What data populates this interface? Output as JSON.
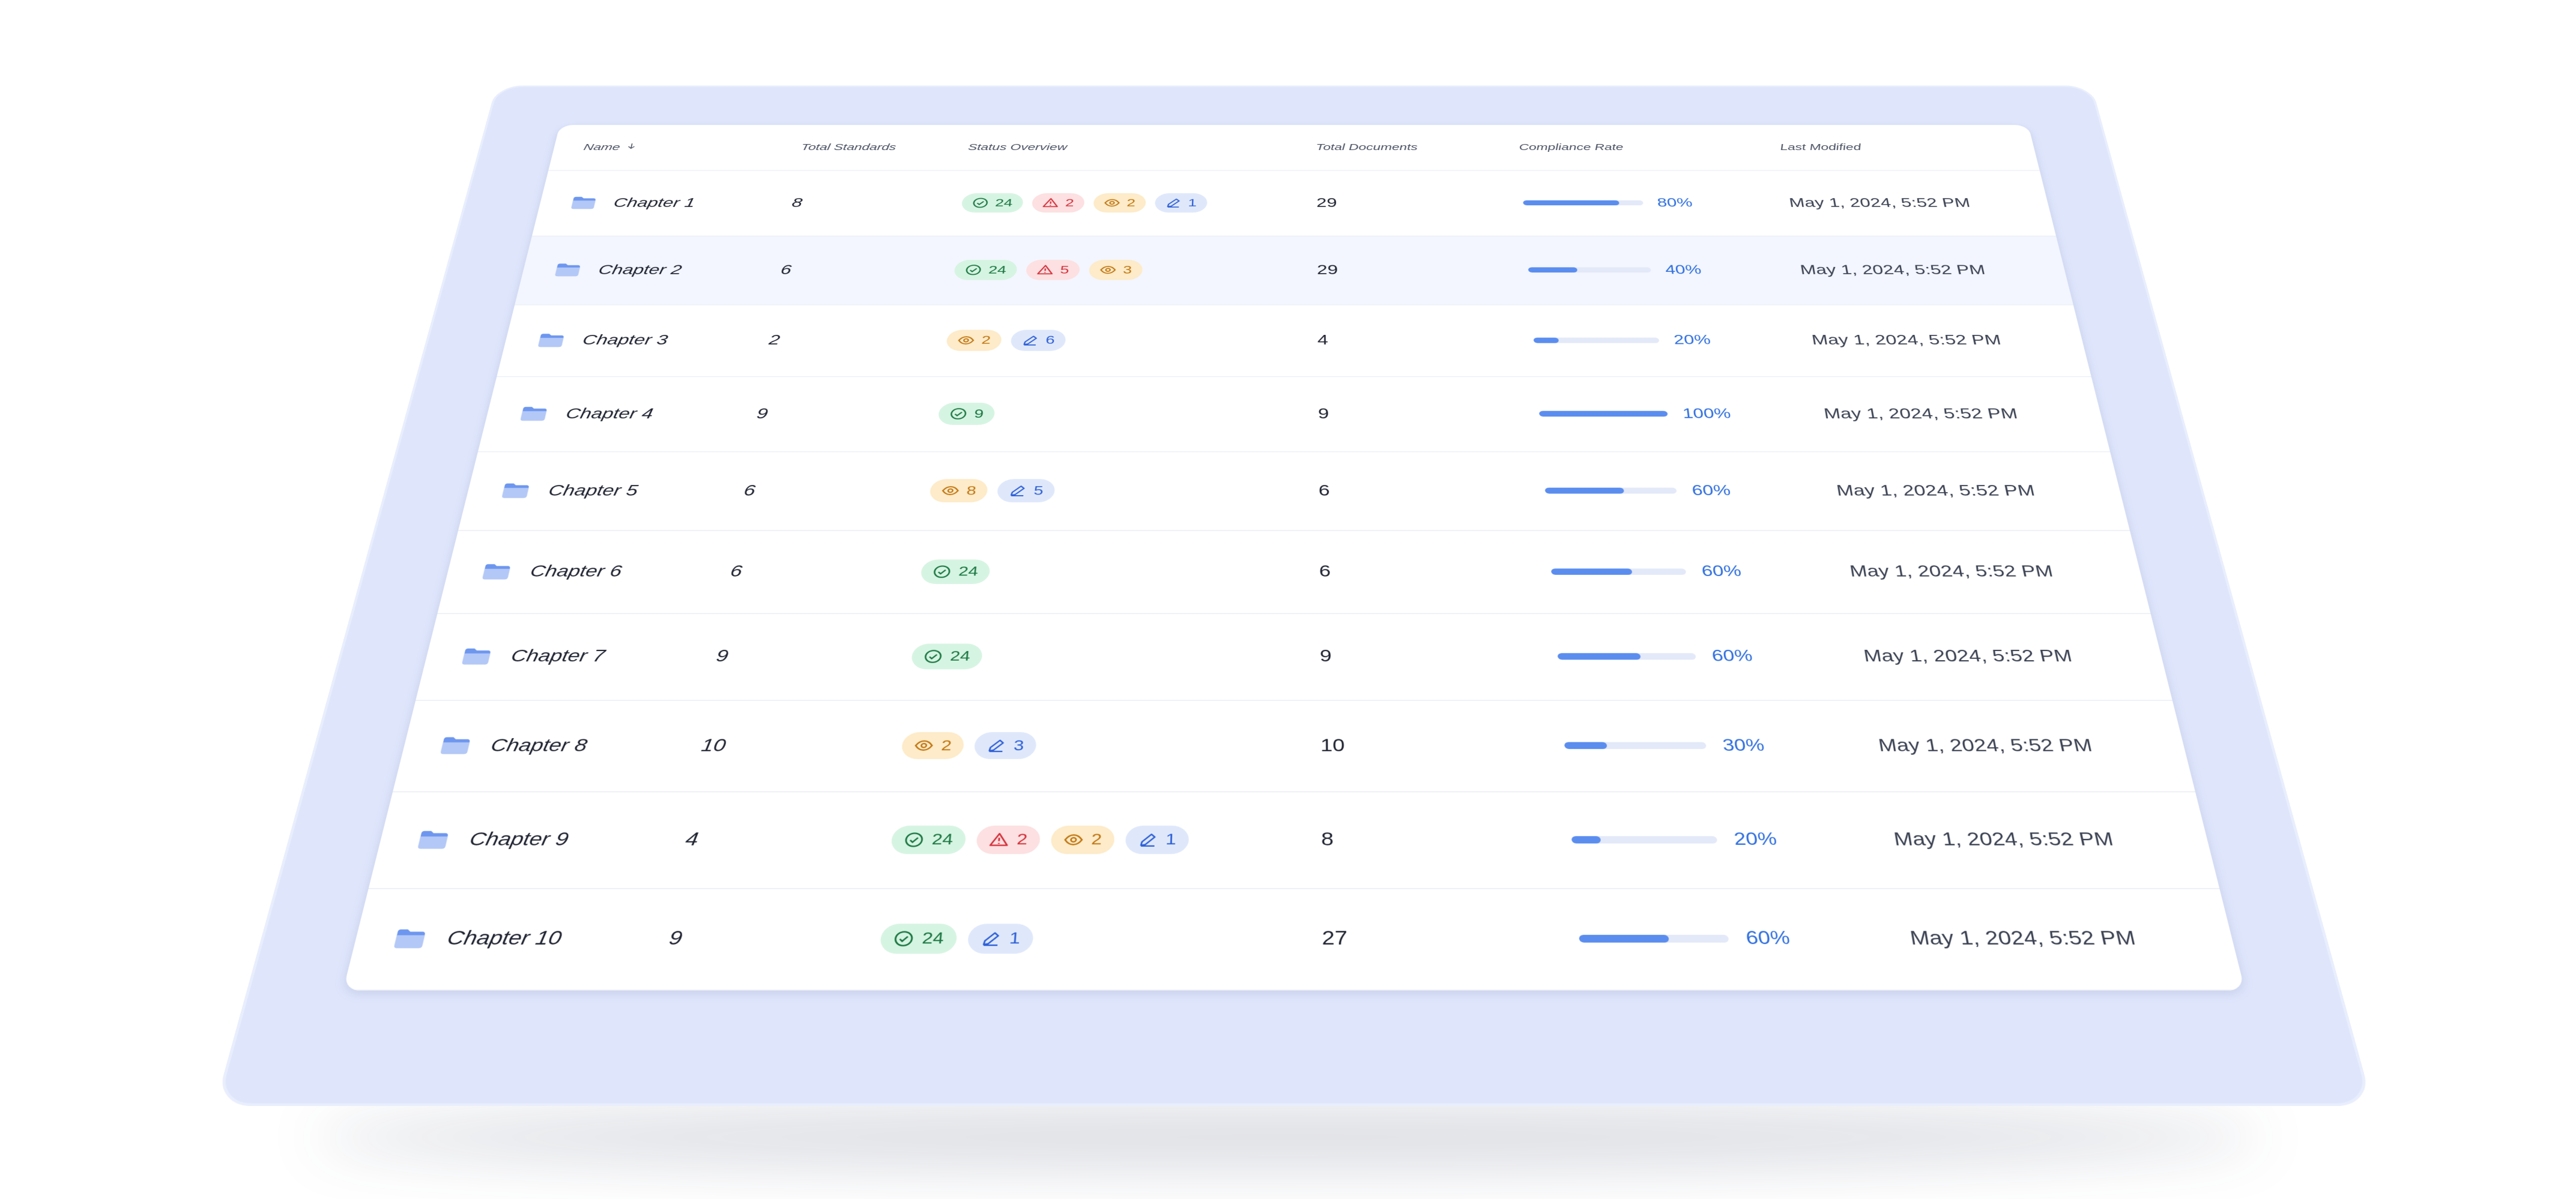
{
  "table": {
    "columns": [
      "Name",
      "Total Standards",
      "Status Overview",
      "Total Documents",
      "Compliance Rate",
      "Last Modified"
    ],
    "compliance_range": [
      0,
      100
    ],
    "rows": [
      {
        "name": "Chapter 1",
        "standards": 8,
        "status": [
          {
            "kind": "approved",
            "count": 24
          },
          {
            "kind": "issues",
            "count": 2
          },
          {
            "kind": "review",
            "count": 2
          },
          {
            "kind": "draft",
            "count": 1
          }
        ],
        "documents": 29,
        "compliance": {
          "value": 80,
          "label": "80%"
        },
        "modified": "May 1, 2024, 5:52 PM"
      },
      {
        "name": "Chapter 2",
        "standards": 6,
        "status": [
          {
            "kind": "approved",
            "count": 24
          },
          {
            "kind": "issues",
            "count": 5
          },
          {
            "kind": "review",
            "count": 3
          }
        ],
        "documents": 29,
        "compliance": {
          "value": 40,
          "label": "40%"
        },
        "modified": "May 1, 2024, 5:52 PM"
      },
      {
        "name": "Chapter 3",
        "standards": 2,
        "status": [
          {
            "kind": "review",
            "count": 2
          },
          {
            "kind": "draft",
            "count": 6
          }
        ],
        "documents": 4,
        "compliance": {
          "value": 20,
          "label": "20%"
        },
        "modified": "May 1, 2024, 5:52 PM"
      },
      {
        "name": "Chapter 4",
        "standards": 9,
        "status": [
          {
            "kind": "approved",
            "count": 9
          }
        ],
        "documents": 9,
        "compliance": {
          "value": 100,
          "label": "100%"
        },
        "modified": "May 1, 2024, 5:52 PM"
      },
      {
        "name": "Chapter 5",
        "standards": 6,
        "status": [
          {
            "kind": "review",
            "count": 8
          },
          {
            "kind": "draft",
            "count": 5
          }
        ],
        "documents": 6,
        "compliance": {
          "value": 60,
          "label": "60%"
        },
        "modified": "May 1, 2024, 5:52 PM"
      },
      {
        "name": "Chapter 6",
        "standards": 6,
        "status": [
          {
            "kind": "approved",
            "count": 24
          }
        ],
        "documents": 6,
        "compliance": {
          "value": 60,
          "label": "60%"
        },
        "modified": "May 1, 2024, 5:52 PM"
      },
      {
        "name": "Chapter 7",
        "standards": 9,
        "status": [
          {
            "kind": "approved",
            "count": 24
          }
        ],
        "documents": 9,
        "compliance": {
          "value": 60,
          "label": "60%"
        },
        "modified": "May 1, 2024, 5:52 PM"
      },
      {
        "name": "Chapter 8",
        "standards": 10,
        "status": [
          {
            "kind": "review",
            "count": 2
          },
          {
            "kind": "draft",
            "count": 3
          }
        ],
        "documents": 10,
        "compliance": {
          "value": 30,
          "label": "30%"
        },
        "modified": "May 1, 2024, 5:52 PM"
      },
      {
        "name": "Chapter 9",
        "standards": 4,
        "status": [
          {
            "kind": "approved",
            "count": 24
          },
          {
            "kind": "issues",
            "count": 2
          },
          {
            "kind": "review",
            "count": 2
          },
          {
            "kind": "draft",
            "count": 1
          }
        ],
        "documents": 8,
        "compliance": {
          "value": 20,
          "label": "20%"
        },
        "modified": "May 1, 2024, 5:52 PM"
      },
      {
        "name": "Chapter 10",
        "standards": 9,
        "status": [
          {
            "kind": "approved",
            "count": 24
          },
          {
            "kind": "draft",
            "count": 1
          }
        ],
        "documents": 27,
        "compliance": {
          "value": 60,
          "label": "60%"
        },
        "modified": "May 1, 2024, 5:52 PM"
      }
    ]
  }
}
